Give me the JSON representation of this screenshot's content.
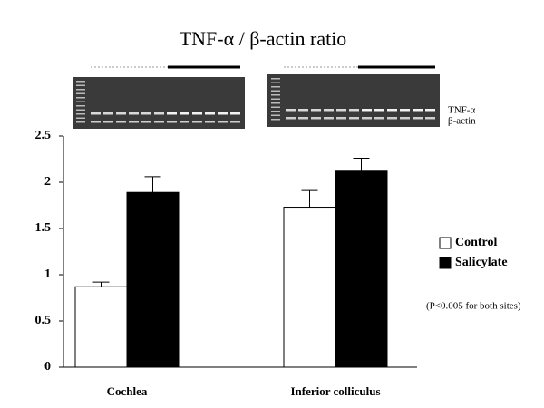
{
  "chart_data": {
    "type": "bar",
    "title": "TNF-α / β-actin ratio",
    "categories": [
      "Cochlea",
      "Inferior colliculus"
    ],
    "series": [
      {
        "name": "Control",
        "color": "#ffffff",
        "values": [
          0.87,
          1.73
        ],
        "errors": [
          0.05,
          0.18
        ]
      },
      {
        "name": "Salicylate",
        "color": "#000000",
        "values": [
          1.89,
          2.12
        ],
        "errors": [
          0.17,
          0.14
        ]
      }
    ],
    "ylim": [
      0,
      2.5
    ],
    "yticks": [
      0,
      0.5,
      1,
      1.5,
      2,
      2.5
    ],
    "grid": false,
    "legend": "right",
    "gel_labels": [
      "TNF-α",
      "β-actin"
    ],
    "annotations": [
      "(P<0.005 for both sites)"
    ]
  }
}
